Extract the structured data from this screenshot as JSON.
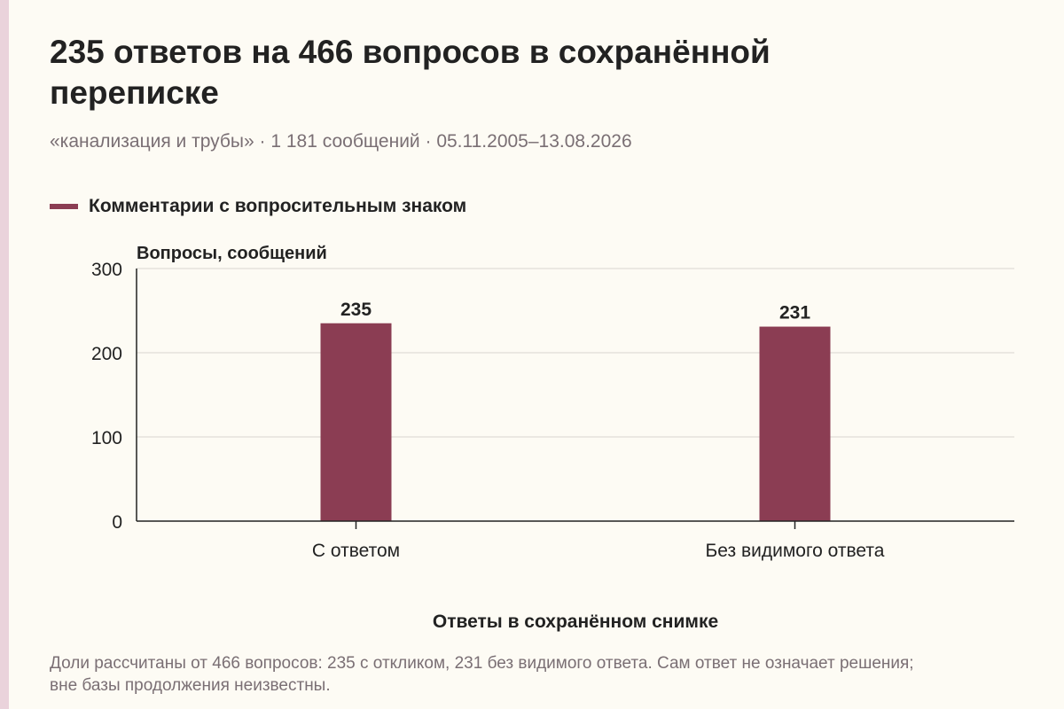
{
  "header": {
    "title": "235 ответов на 466 вопросов в сохранённой переписке",
    "subtitle": "«канализация и трубы» · 1 181 сообщений · 05.11.2005–13.08.2026"
  },
  "legend": {
    "label": "Комментарии с вопросительным знаком"
  },
  "colors": {
    "bar": "#8b3d53",
    "strip": "#ead3db",
    "grid": "#d9d6cf",
    "axis": "#222222"
  },
  "chart_data": {
    "type": "bar",
    "categories": [
      "С ответом",
      "Без видимого ответа"
    ],
    "series": [
      {
        "name": "Комментарии с вопросительным знаком",
        "values": [
          235,
          231
        ]
      }
    ],
    "data_labels": [
      "235",
      "231"
    ],
    "ylabel": "Вопросы, сообщений",
    "xlabel": "Ответы в сохранённом снимке",
    "ylim": [
      0,
      300
    ],
    "yticks": [
      0,
      100,
      200,
      300
    ],
    "ytick_labels": [
      "0",
      "100",
      "200",
      "300"
    ],
    "grid": true,
    "legend_position": "top-left"
  },
  "footnote": "Доли рассчитаны от 466 вопросов: 235 с откликом, 231 без видимого ответа. Сам ответ не означает решения; вне базы продолжения неизвестны."
}
